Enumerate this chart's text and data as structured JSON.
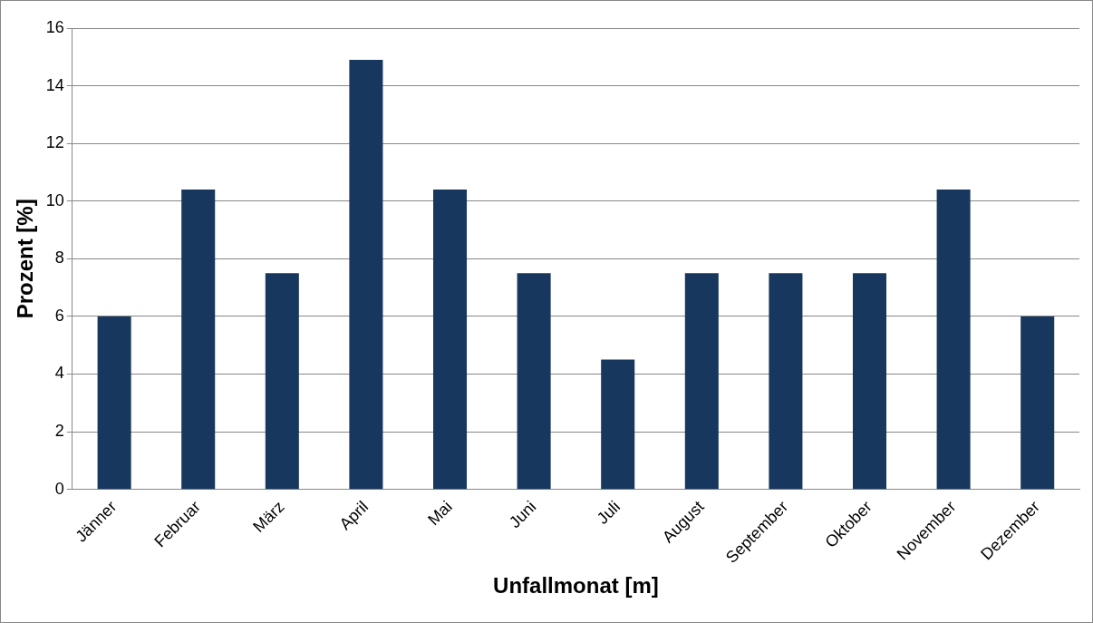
{
  "chart_data": {
    "type": "bar",
    "xlabel": "Unfallmonat [m]",
    "ylabel": "Prozent [%]",
    "categories": [
      "Jänner",
      "Februar",
      "März",
      "April",
      "Mai",
      "Juni",
      "Juli",
      "August",
      "September",
      "Oktober",
      "November",
      "Dezember"
    ],
    "values": [
      6.0,
      10.4,
      7.5,
      14.9,
      10.4,
      7.5,
      4.5,
      7.5,
      7.5,
      7.5,
      10.4,
      6.0
    ],
    "color": "#17375e",
    "ylim": [
      0,
      16
    ],
    "yticks": [
      0,
      2,
      4,
      6,
      8,
      10,
      12,
      14,
      16
    ],
    "grid": "y",
    "legend": false
  }
}
